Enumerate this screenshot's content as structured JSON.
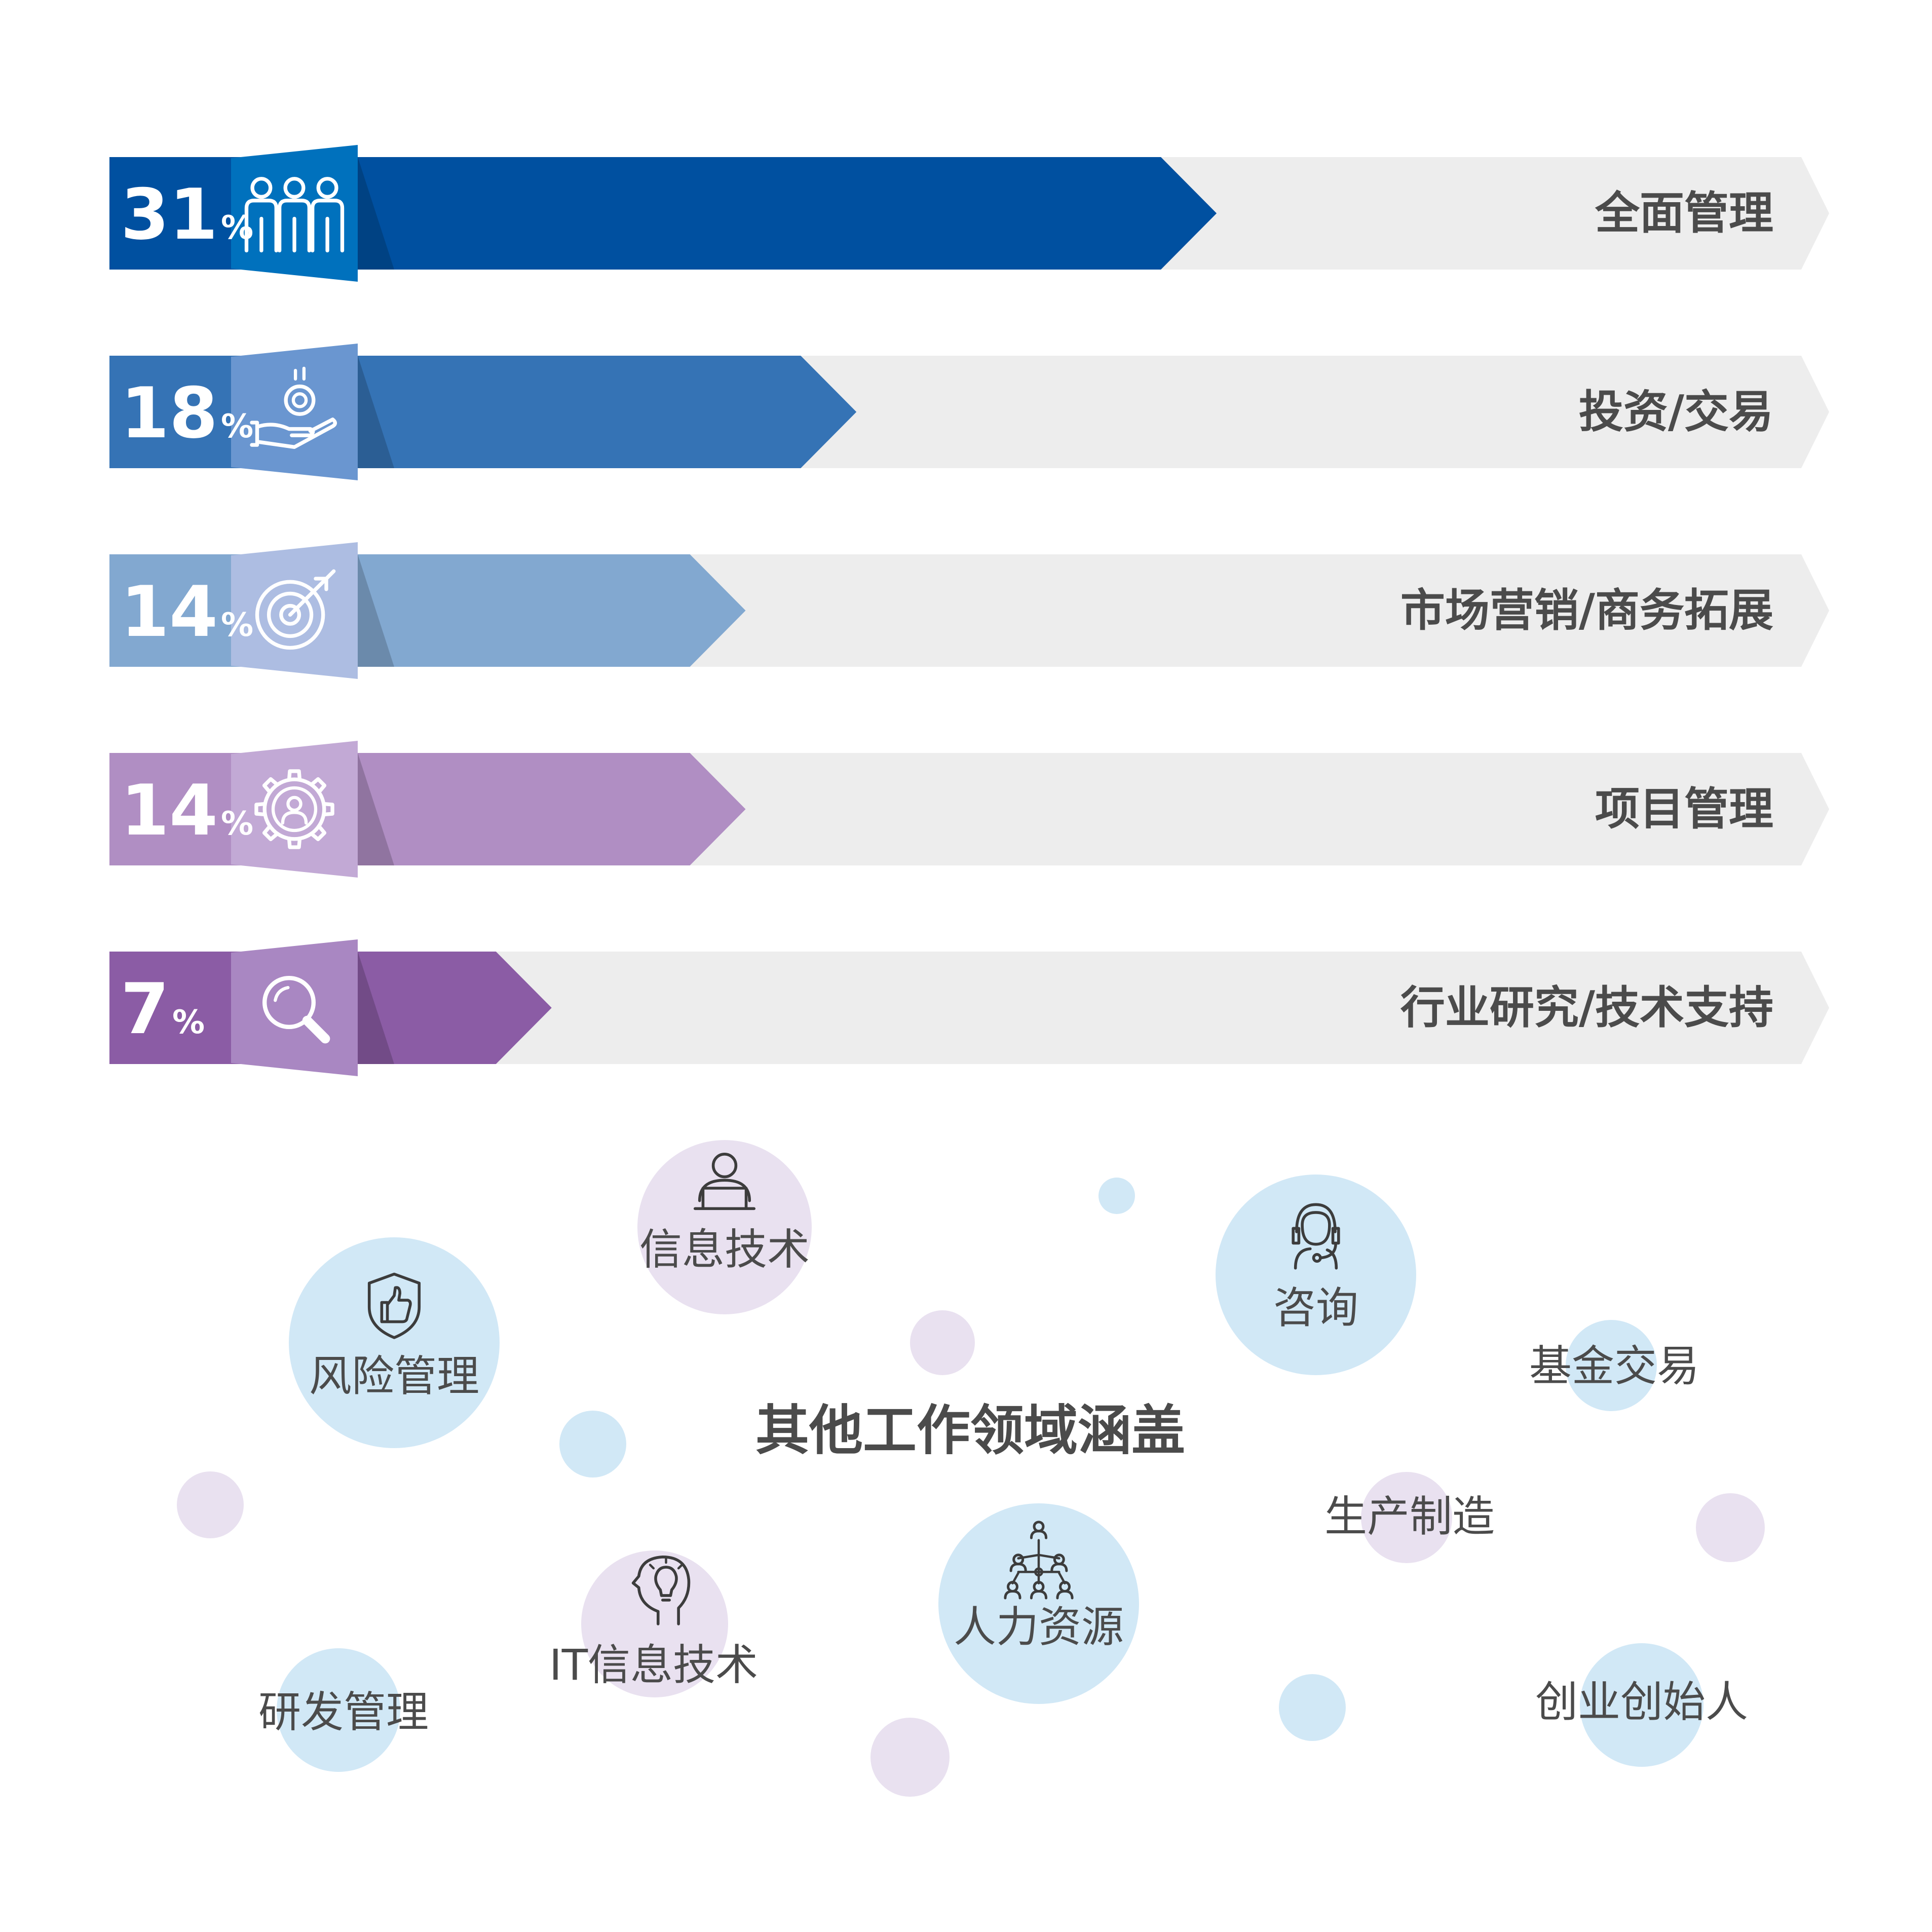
{
  "chart_data": {
    "type": "bar",
    "title": "",
    "xlabel": "",
    "ylabel": "",
    "ylim": [
      0,
      50
    ],
    "percent_sign": "%",
    "bars": [
      {
        "value": 31,
        "label": "全面管理",
        "icon": "people-group-icon",
        "colors": {
          "main": "#0050a0",
          "tab": "#0071bd"
        }
      },
      {
        "value": 18,
        "label": "投资/交易",
        "icon": "hand-coin-icon",
        "colors": {
          "main": "#3573b5",
          "tab": "#6a96d0"
        }
      },
      {
        "value": 14,
        "label": "市场营销/商务拓展",
        "icon": "target-icon",
        "colors": {
          "main": "#82a8d0",
          "tab": "#adbde2"
        }
      },
      {
        "value": 14,
        "label": "项目管理",
        "icon": "gear-person-icon",
        "colors": {
          "main": "#b08ec3",
          "tab": "#c2a9d5"
        }
      },
      {
        "value": 7,
        "label": "行业研究/技术支持",
        "icon": "magnifier-icon",
        "colors": {
          "main": "#8b5ca5",
          "tab": "#a987c2"
        }
      }
    ]
  },
  "other_fields": {
    "title": "其他工作领域涵盖",
    "items": [
      {
        "label": "信息技术",
        "icon": "person-laptop-icon"
      },
      {
        "label": "风险管理",
        "icon": "shield-thumb-icon"
      },
      {
        "label": "咨询",
        "icon": "headset-agent-icon"
      },
      {
        "label": "基金交易",
        "icon": ""
      },
      {
        "label": "生产制造",
        "icon": ""
      },
      {
        "label": "IT信息技术",
        "icon": "head-bulb-icon"
      },
      {
        "label": "人力资源",
        "icon": "people-network-icon"
      },
      {
        "label": "研发管理",
        "icon": ""
      },
      {
        "label": "创业创始人",
        "icon": ""
      }
    ]
  },
  "colors": {
    "track": "#ededed",
    "text": "#4b4b4b",
    "circle_blue": "#d1e8f6",
    "circle_purple": "#e9e1f0",
    "icon_stroke": "#3c3c3c"
  }
}
